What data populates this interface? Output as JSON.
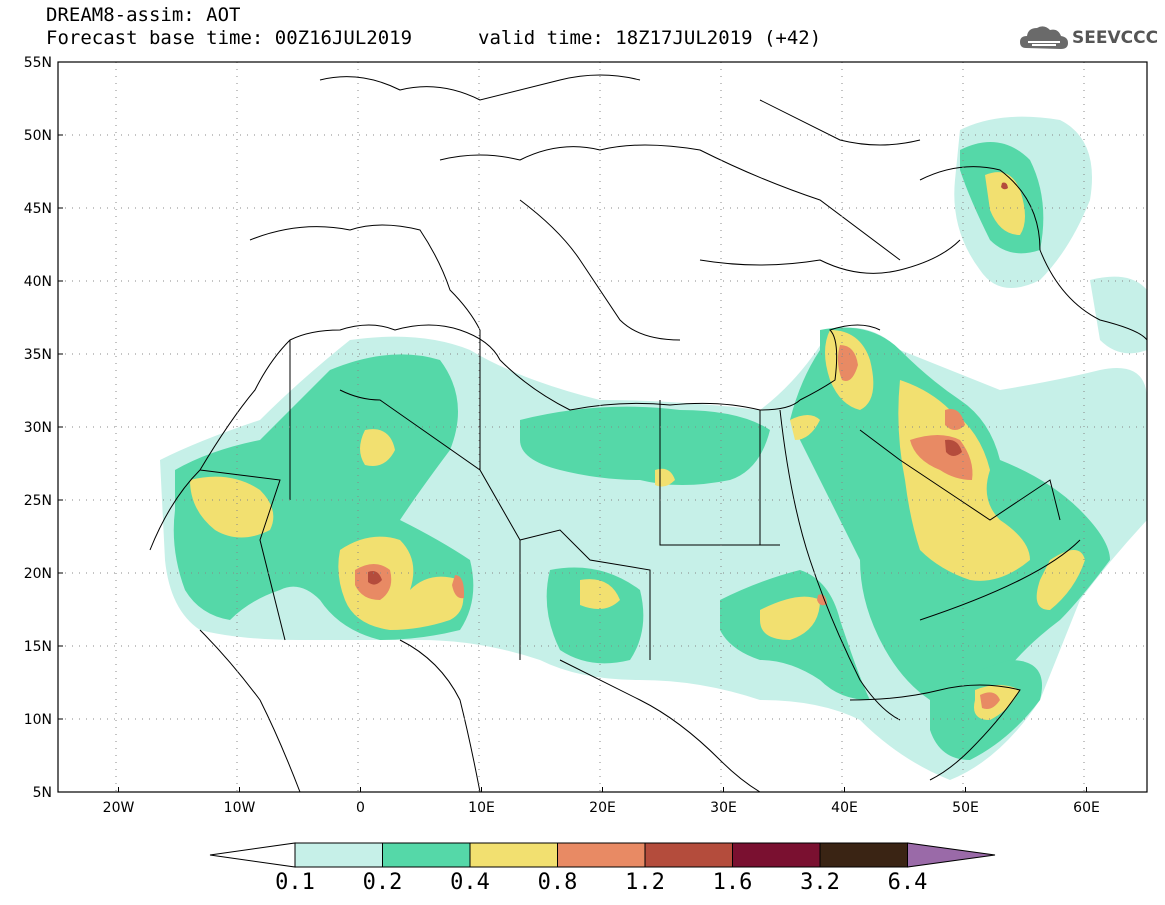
{
  "header": {
    "title": "DREAM8-assim: AOT",
    "base_time": "Forecast base time: 00Z16JUL2019",
    "valid_time": "valid time: 18Z17JUL2019 (+42)"
  },
  "logo": {
    "text": "SEEVCCC",
    "icon": "cloud-logo-icon"
  },
  "map": {
    "lat_labels": [
      "55N",
      "50N",
      "45N",
      "40N",
      "35N",
      "30N",
      "25N",
      "20N",
      "15N",
      "10N",
      "5N"
    ],
    "lon_labels": [
      "20W",
      "10W",
      "0",
      "10E",
      "20E",
      "30E",
      "40E",
      "50E",
      "60E"
    ],
    "lat_range": [
      5,
      55
    ],
    "lon_range": [
      -25,
      65
    ],
    "background": "#ffffff",
    "gridlines": true
  },
  "colorbar": {
    "levels": [
      "0.1",
      "0.2",
      "0.4",
      "0.8",
      "1.2",
      "1.6",
      "3.2",
      "6.4"
    ],
    "colors": [
      "#c6f0e8",
      "#55d8a8",
      "#f2e070",
      "#e88a64",
      "#b44c3c",
      "#7a1030",
      "#3a2414",
      "#9a6aa8"
    ],
    "under_color": "#ffffff"
  }
}
